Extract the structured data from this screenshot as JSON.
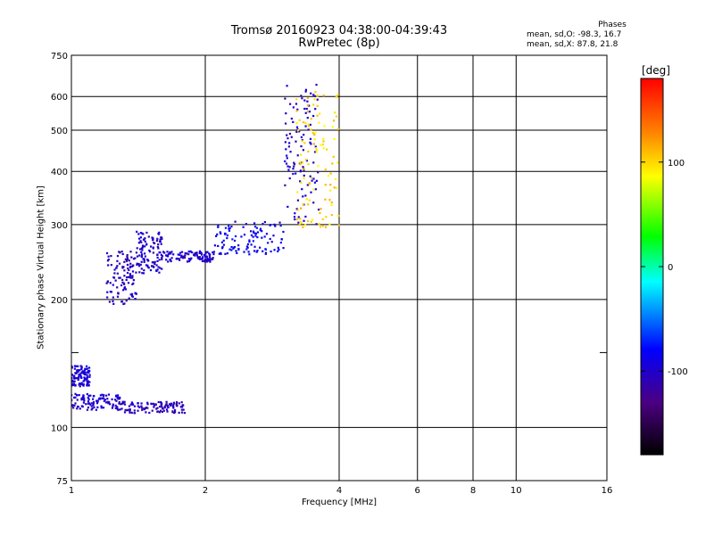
{
  "chart_data": {
    "type": "scatter",
    "title": "Tromsø 20160923 04:38:00-04:39:43",
    "subtitle": "RwPretec (8p)",
    "xlabel": "Frequency [MHz]",
    "ylabel": "Stationary phase Virtual Height [km]",
    "x_scale": "log",
    "y_scale": "log",
    "xlim": [
      1,
      16
    ],
    "ylim": [
      75,
      750
    ],
    "x_ticks": [
      "1",
      "2",
      "4",
      "6",
      "8",
      "10",
      "16"
    ],
    "y_ticks": [
      "75",
      "100",
      "200",
      "300",
      "400",
      "500",
      "600",
      "750"
    ],
    "grid": true,
    "colorbar": {
      "label": "[deg]",
      "range": [
        -180,
        180
      ],
      "ticks": [
        "100",
        "0",
        "-100"
      ],
      "colors": [
        "#000000",
        "#4b0082",
        "#0000ff",
        "#00ffff",
        "#00ff00",
        "#ffff00",
        "#ff8000",
        "#ff0000"
      ]
    },
    "phase_stats": {
      "title": "Phases",
      "o_line": "mean, sd,O: -98.3, 16.7",
      "x_line": "mean, sd,X: 87.8, 21.8"
    },
    "traces": [
      {
        "x_range": [
          1.0,
          1.3
        ],
        "y_range": [
          110,
          120
        ],
        "phase": -100
      },
      {
        "x_range": [
          1.3,
          1.8
        ],
        "y_range": [
          108,
          115
        ],
        "phase": -105
      },
      {
        "x_range": [
          1.0,
          1.1
        ],
        "y_range": [
          125,
          140
        ],
        "phase": -95
      },
      {
        "x_range": [
          1.2,
          1.4
        ],
        "y_range": [
          195,
          260
        ],
        "phase": -105
      },
      {
        "x_range": [
          1.4,
          1.6
        ],
        "y_range": [
          230,
          290
        ],
        "phase": -100
      },
      {
        "x_range": [
          1.6,
          2.1
        ],
        "y_range": [
          245,
          260
        ],
        "phase": -100
      },
      {
        "x_range": [
          2.1,
          3.0
        ],
        "y_range": [
          255,
          305
        ],
        "phase": -85
      },
      {
        "x_range": [
          3.0,
          3.6
        ],
        "y_range": [
          300,
          640
        ],
        "phase": -100
      },
      {
        "x_range": [
          3.2,
          4.0
        ],
        "y_range": [
          295,
          620
        ],
        "phase": 100
      }
    ]
  }
}
